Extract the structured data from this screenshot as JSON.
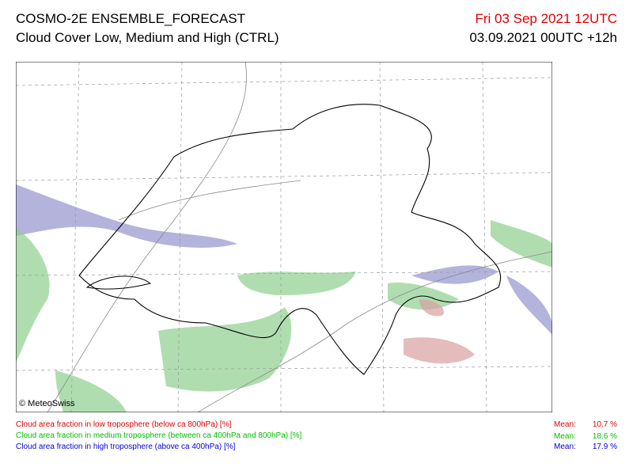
{
  "header": {
    "title": "COSMO-2E ENSEMBLE_FORECAST",
    "subtitle": "Cloud Cover Low, Medium and High (CTRL)",
    "valid_time": "Fri 03 Sep 2021 12UTC",
    "run_time": "03.09.2021 00UTC +12h"
  },
  "map": {
    "copyright": "© MeteoSwiss"
  },
  "legend": {
    "items": [
      {
        "text": "Cloud area fraction in low troposphere (below ca 800hPa) [%]",
        "mean_label": "Mean:",
        "mean": "10.7 %"
      },
      {
        "text": "Cloud area fraction in medium troposphere (between ca 400hPa and 800hPa) [%]",
        "mean_label": "Mean:",
        "mean": "18.6 %"
      },
      {
        "text": "Cloud area fraction in high troposphere (above ca 400hPa) [%]",
        "mean_label": "Mean:",
        "mean": "17.9 %"
      }
    ]
  }
}
